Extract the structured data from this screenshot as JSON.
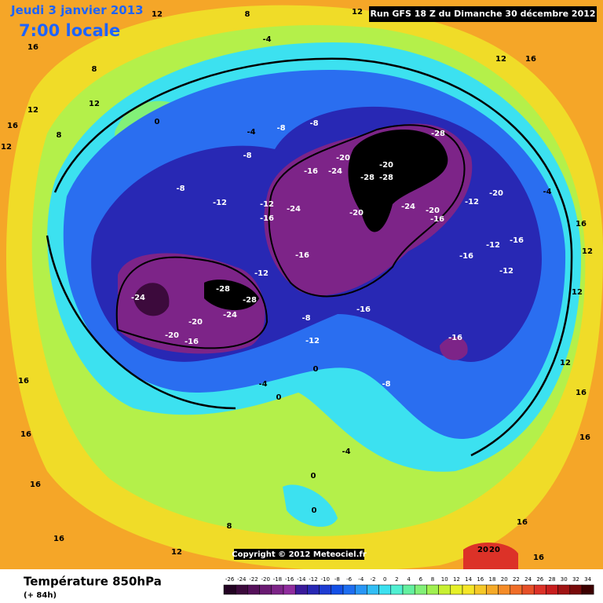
{
  "header": {
    "date": "Jeudi 3 janvier 2013",
    "time": "7:00 locale",
    "run": "Run GFS 18 Z du Dimanche 30 décembre 2012"
  },
  "map": {
    "copyright": "Copyright © 2012 Meteociel.fr",
    "contour_labels": [
      12,
      8,
      12,
      16,
      -4,
      8,
      12,
      12,
      16,
      8,
      12,
      0,
      -4,
      -8,
      -8,
      -28,
      -20,
      -24,
      -16,
      -20,
      -28,
      -28,
      -24,
      -20,
      -24,
      -20,
      -16,
      -12,
      -20,
      -4,
      -16,
      -12,
      -16,
      -12,
      -16,
      -12,
      -24,
      -28,
      -28,
      -24,
      -20,
      -20,
      -16,
      -8,
      -12,
      -16,
      -16,
      -8,
      -4,
      0,
      0,
      -4,
      0,
      0,
      8,
      12,
      16,
      12,
      16,
      12,
      20,
      20,
      16,
      16,
      16,
      16,
      16,
      12,
      16,
      -8,
      -12,
      -8,
      -16,
      -12,
      12,
      16,
      16
    ]
  },
  "footer": {
    "title": "Température 850hPa",
    "lead": "(+ 84h)"
  },
  "scale": {
    "values": [
      -26,
      -24,
      -22,
      -20,
      -18,
      -16,
      -14,
      -12,
      -10,
      -8,
      -6,
      -4,
      -2,
      0,
      2,
      4,
      6,
      8,
      10,
      12,
      14,
      16,
      18,
      20,
      22,
      24,
      26,
      28,
      30,
      32,
      34
    ],
    "colors": [
      "#230323",
      "#3c0a3c",
      "#55105a",
      "#6a1a72",
      "#7d2488",
      "#902c9e",
      "#3a1a9a",
      "#2828b4",
      "#1e3cd2",
      "#1450e6",
      "#1e6ef0",
      "#2896f5",
      "#32bef5",
      "#3ce1f0",
      "#50f0d2",
      "#64f0a0",
      "#82f078",
      "#a0f050",
      "#c8f032",
      "#e6f028",
      "#f5e628",
      "#f5c828",
      "#f5aa28",
      "#f58c28",
      "#f06e28",
      "#e65028",
      "#dc3228",
      "#c81e1e",
      "#a01414",
      "#780a0a",
      "#3c0000"
    ]
  }
}
